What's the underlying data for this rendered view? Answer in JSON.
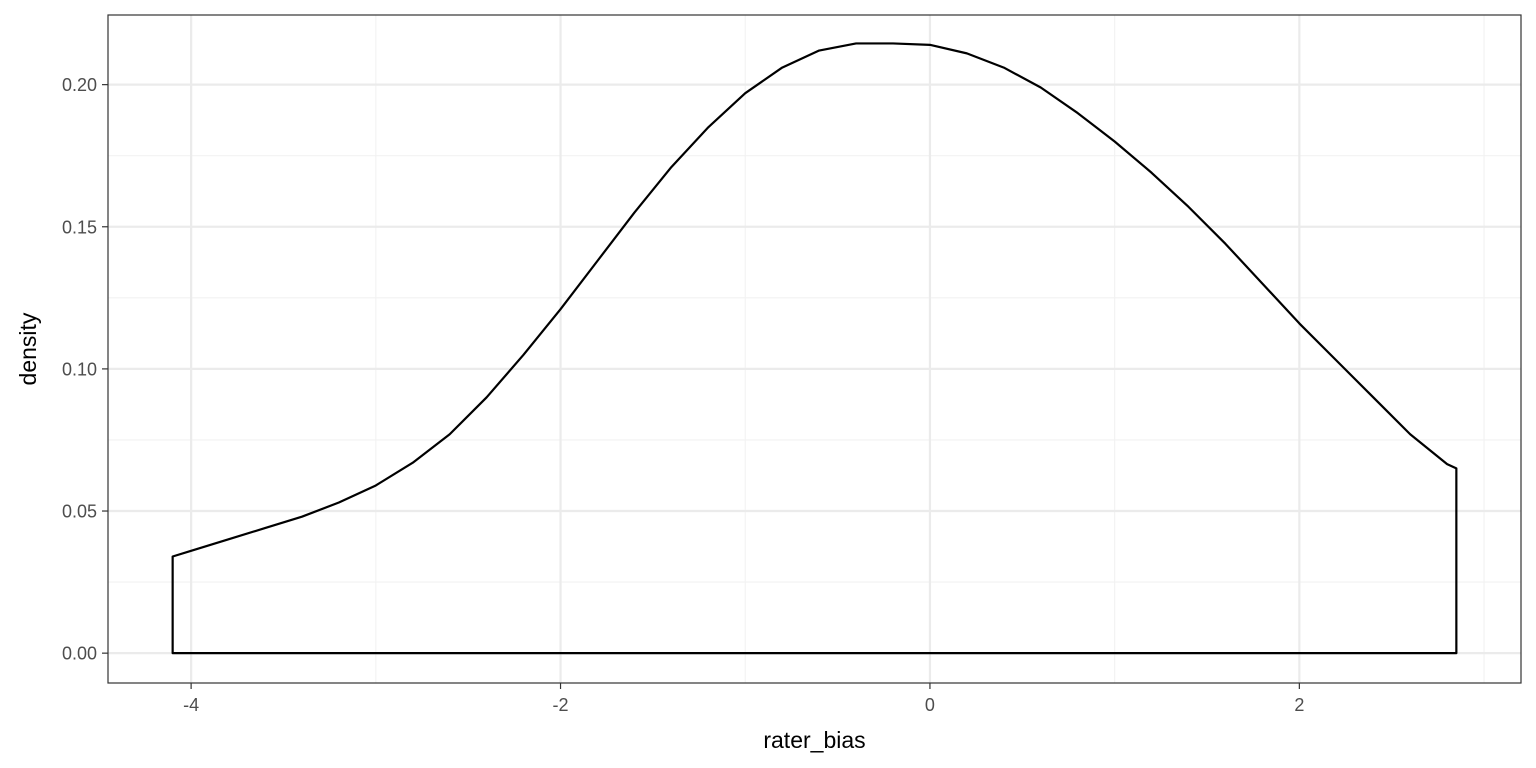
{
  "chart_data": {
    "type": "area",
    "title": "",
    "xlabel": "rater_bias",
    "ylabel": "density",
    "xlim": [
      -4.45,
      3.2
    ],
    "ylim": [
      -0.0105,
      0.2245
    ],
    "x_ticks": [
      -4,
      -2,
      0,
      2
    ],
    "x_tick_labels": [
      "-4",
      "-2",
      "0",
      "2"
    ],
    "y_ticks": [
      0.0,
      0.05,
      0.1,
      0.15,
      0.2
    ],
    "y_tick_labels": [
      "0.00",
      "0.05",
      "0.10",
      "0.15",
      "0.20"
    ],
    "x_minor_ticks": [
      -3,
      -1,
      1,
      3
    ],
    "y_minor_ticks": [
      0.025,
      0.075,
      0.125,
      0.175
    ],
    "grid": true,
    "legend": "none",
    "line_color": "#000000",
    "fill": "none",
    "series": [
      {
        "x": [
          -4.1,
          -4.0,
          -3.8,
          -3.6,
          -3.4,
          -3.2,
          -3.0,
          -2.8,
          -2.6,
          -2.4,
          -2.2,
          -2.0,
          -1.8,
          -1.6,
          -1.4,
          -1.2,
          -1.0,
          -0.8,
          -0.6,
          -0.4,
          -0.2,
          0.0,
          0.2,
          0.4,
          0.6,
          0.8,
          1.0,
          1.2,
          1.4,
          1.6,
          1.8,
          2.0,
          2.2,
          2.4,
          2.6,
          2.8,
          2.85
        ],
        "y": [
          0.034,
          0.036,
          0.04,
          0.044,
          0.048,
          0.053,
          0.059,
          0.067,
          0.077,
          0.09,
          0.105,
          0.121,
          0.138,
          0.155,
          0.171,
          0.185,
          0.197,
          0.206,
          0.212,
          0.2145,
          0.2145,
          0.214,
          0.211,
          0.206,
          0.199,
          0.19,
          0.18,
          0.169,
          0.157,
          0.144,
          0.13,
          0.116,
          0.103,
          0.09,
          0.077,
          0.0665,
          0.065
        ]
      }
    ]
  }
}
